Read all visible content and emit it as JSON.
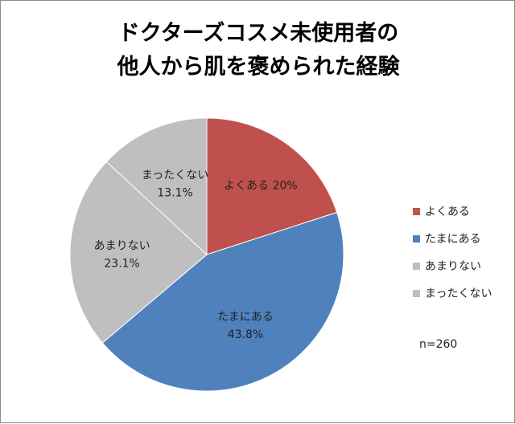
{
  "chart_data": {
    "type": "pie",
    "title_lines": [
      "ドクターズコスメ未使用者の",
      "他人から肌を褒められた経験"
    ],
    "slices": [
      {
        "label": "よくある",
        "value": 20.0,
        "value_text": "20%",
        "color": "#c0504d"
      },
      {
        "label": "たまにある",
        "value": 43.8,
        "value_text": "43.8%",
        "color": "#4f81bd"
      },
      {
        "label": "あまりない",
        "value": 23.1,
        "value_text": "23.1%",
        "color": "#bfbfbf"
      },
      {
        "label": "まったくない",
        "value": 13.1,
        "value_text": "13.1%",
        "color": "#bfbfbf"
      }
    ],
    "legend_position": "right",
    "note": "n=260"
  }
}
